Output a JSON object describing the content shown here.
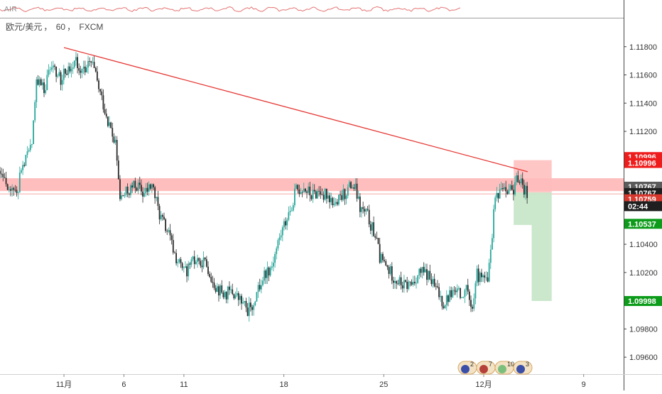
{
  "indicator": {
    "name": "AIR"
  },
  "header": {
    "symbol": "欧元/美元",
    "sep": "，",
    "interval": "60",
    "broker": "FXCM"
  },
  "colors": {
    "up": "#26a69a",
    "down": "#2a2a2a",
    "trend_line": "#e53935",
    "resistance_zone": "#ffb3b3",
    "stop_zone": "#ffbcbc",
    "target_zone": "#c8e6c9",
    "label_red": "#ef1c1c",
    "label_gray": "#5b5b5b",
    "label_darkred": "#d9382e",
    "label_green": "#0d9b1a",
    "label_black": "#1f1f1f"
  },
  "events": {
    "counts": [
      "2",
      "7",
      "10",
      "3"
    ],
    "icons": [
      "eu-flag-icon",
      "us-flag-icon",
      "event-bar-icon",
      "eu-flag-icon"
    ]
  },
  "chart_data": {
    "type": "candlestick",
    "title": "",
    "ylim": [
      1.0948,
      1.12
    ],
    "xlim": [
      0,
      156
    ],
    "y_ticks": [
      "1.11800",
      "1.11600",
      "1.11400",
      "1.11200",
      "1.10400",
      "1.10200",
      "1.09800",
      "1.09600"
    ],
    "y_tick_values": [
      1.118,
      1.116,
      1.114,
      1.112,
      1.104,
      1.102,
      1.098,
      1.096
    ],
    "x_ticks": [
      {
        "label": "11月",
        "x": 16
      },
      {
        "label": "6",
        "x": 31
      },
      {
        "label": "11",
        "x": 46
      },
      {
        "label": "18",
        "x": 71
      },
      {
        "label": "25",
        "x": 96
      },
      {
        "label": "12月",
        "x": 121
      },
      {
        "label": "9",
        "x": 146
      }
    ],
    "price_path": [
      [
        0,
        1.1092
      ],
      [
        2,
        1.1083
      ],
      [
        4,
        1.1075
      ],
      [
        6,
        1.1098
      ],
      [
        8,
        1.111
      ],
      [
        9,
        1.1158
      ],
      [
        11,
        1.115
      ],
      [
        13,
        1.1171
      ],
      [
        15,
        1.1156
      ],
      [
        17,
        1.1165
      ],
      [
        19,
        1.117
      ],
      [
        21,
        1.1163
      ],
      [
        23,
        1.1168
      ],
      [
        25,
        1.1147
      ],
      [
        27,
        1.1128
      ],
      [
        29,
        1.1108
      ],
      [
        30,
        1.1072
      ],
      [
        32,
        1.1077
      ],
      [
        34,
        1.1082
      ],
      [
        36,
        1.1075
      ],
      [
        38,
        1.1082
      ],
      [
        40,
        1.106
      ],
      [
        42,
        1.1048
      ],
      [
        44,
        1.103
      ],
      [
        46,
        1.102
      ],
      [
        48,
        1.1026
      ],
      [
        50,
        1.103
      ],
      [
        52,
        1.1024
      ],
      [
        54,
        1.101
      ],
      [
        56,
        1.1004
      ],
      [
        58,
        1.1006
      ],
      [
        60,
        1.1
      ],
      [
        62,
        1.0993
      ],
      [
        64,
        1.1003
      ],
      [
        66,
        1.1018
      ],
      [
        68,
        1.1025
      ],
      [
        70,
        1.1045
      ],
      [
        72,
        1.106
      ],
      [
        74,
        1.1078
      ],
      [
        76,
        1.108
      ],
      [
        78,
        1.1074
      ],
      [
        80,
        1.1078
      ],
      [
        82,
        1.1075
      ],
      [
        84,
        1.1068
      ],
      [
        86,
        1.1075
      ],
      [
        88,
        1.1082
      ],
      [
        89,
        1.1078
      ],
      [
        90,
        1.1065
      ],
      [
        92,
        1.106
      ],
      [
        94,
        1.1045
      ],
      [
        95,
        1.103
      ],
      [
        97,
        1.1022
      ],
      [
        99,
        1.1015
      ],
      [
        101,
        1.101
      ],
      [
        103,
        1.1012
      ],
      [
        105,
        1.102
      ],
      [
        107,
        1.1018
      ],
      [
        109,
        1.1008
      ],
      [
        111,
        1.0998
      ],
      [
        113,
        1.1006
      ],
      [
        115,
        1.1004
      ],
      [
        117,
        1.1012
      ],
      [
        118,
        1.0992
      ],
      [
        119,
        1.1018
      ],
      [
        121,
        1.1017
      ],
      [
        122,
        1.101
      ],
      [
        123,
        1.1045
      ],
      [
        124,
        1.1075
      ],
      [
        126,
        1.1082
      ],
      [
        128,
        1.1078
      ],
      [
        130,
        1.1088
      ],
      [
        131,
        1.1079
      ],
      [
        132,
        1.1077
      ]
    ],
    "seed": 11,
    "trend_line": {
      "from": [
        16,
        1.11794
      ],
      "to": [
        132,
        1.10914
      ]
    },
    "resistance_zone": [
      1.10777,
      1.10868
    ],
    "current_price": 1.10767,
    "position": {
      "x_range": [
        128.5,
        138
      ],
      "entry": 1.10767,
      "stop": 1.10996,
      "target": 1.09998,
      "target_x_range": [
        133,
        138
      ],
      "lower_step": 1.10537
    },
    "price_labels": [
      {
        "text": "1.10996",
        "y": 1.11018,
        "color": "label_red"
      },
      {
        "text": "1.10996",
        "y": 1.10976,
        "color": "label_red"
      },
      {
        "text": "1.10767",
        "y": 1.10808,
        "color": "label_gray"
      },
      {
        "text": "1.10767",
        "y": 1.10763,
        "color": "label_black"
      },
      {
        "text": "1.10759",
        "y": 1.10719,
        "color": "label_darkred"
      },
      {
        "text": "02:44",
        "y": 1.1067,
        "color": "label_black"
      },
      {
        "text": "1.10537",
        "y": 1.10545,
        "color": "label_green"
      },
      {
        "text": "1.09998",
        "y": 1.09998,
        "color": "label_green"
      }
    ]
  }
}
